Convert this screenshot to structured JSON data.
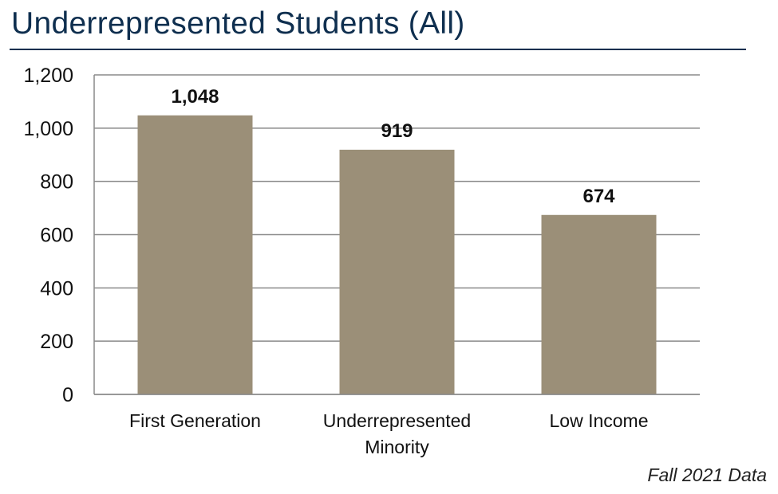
{
  "header": {
    "title": "Underrepresented Students (All)"
  },
  "footnote": "Fall 2021 Data",
  "colors": {
    "title": "#0f2f4f",
    "bar": "#9b8f78",
    "grid": "#8a8a8a"
  },
  "chart_data": {
    "type": "bar",
    "categories": [
      [
        "First Generation"
      ],
      [
        "Underrepresented",
        "Minority"
      ],
      [
        "Low Income"
      ]
    ],
    "values": [
      1048,
      919,
      674
    ],
    "data_labels": [
      "1,048",
      "919",
      "674"
    ],
    "yticks": [
      "0",
      "200",
      "400",
      "600",
      "800",
      "1,000",
      "1,200"
    ],
    "ylim": [
      0,
      1200
    ],
    "grid": true,
    "legend": "none"
  }
}
